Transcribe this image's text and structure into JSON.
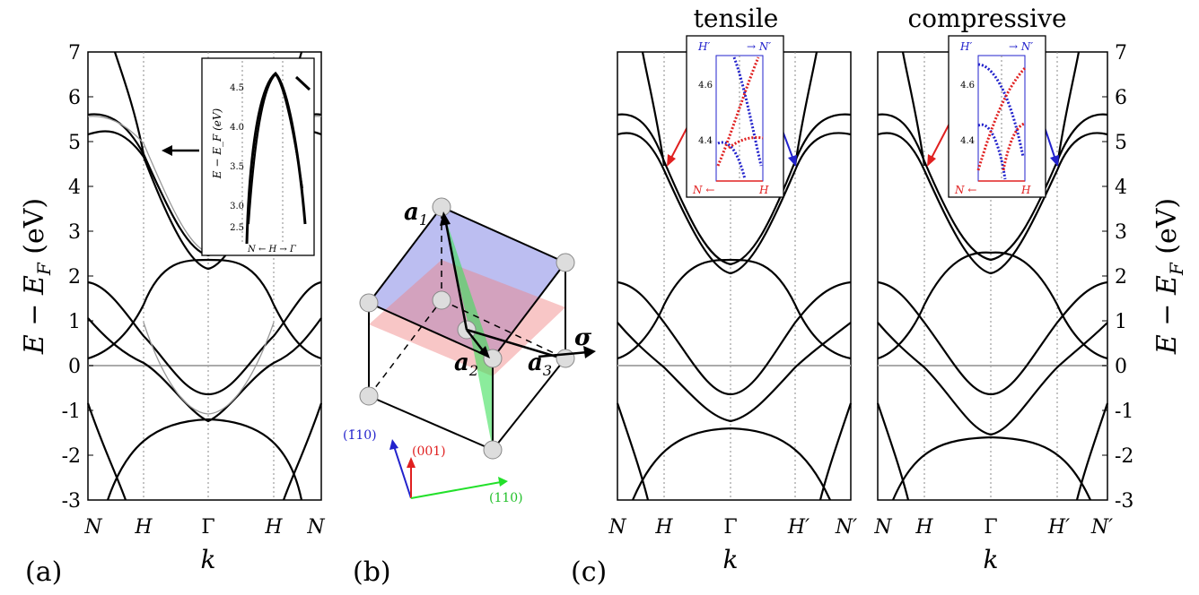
{
  "figure": {
    "panel_labels": [
      "(a)",
      "(b)",
      "(c)"
    ],
    "y_label": "E − E_F (eV)",
    "y_label_main": "E − E",
    "y_label_sub": "F",
    "y_label_unit": " (eV)",
    "x_label": "k",
    "y_ticks": [
      "7",
      "6",
      "5",
      "4",
      "3",
      "2",
      "1",
      "0",
      "-1",
      "-2",
      "-3"
    ]
  },
  "panel_a": {
    "x_ticks": [
      "N",
      "H",
      "Γ",
      "H",
      "N"
    ],
    "inset": {
      "y_label": "E − E_F (eV)",
      "y_ticks": [
        "4.5",
        "4.0",
        "3.5",
        "3.0",
        "2.5"
      ],
      "x_label": "N ← H → Γ"
    }
  },
  "panel_b": {
    "vector_a1": "a",
    "vector_a1_sub": "1",
    "vector_a2": "a",
    "vector_a2_sub": "2",
    "vector_a3": "a",
    "vector_a3_sub": "3",
    "sigma": "σ",
    "axis_blue": "(1̄10)",
    "axis_red": "(001)",
    "axis_green": "(110)",
    "colors": {
      "blue_plane": "#6a6ee0",
      "red_plane": "#f08080",
      "green_plane": "#3ee05a"
    }
  },
  "panel_c_tensile": {
    "title": "tensile",
    "x_ticks": [
      "N",
      "H",
      "Γ",
      "H′",
      "N′"
    ],
    "inset": {
      "top_left": "H′",
      "top_right": "→ N′",
      "bottom_left": "N ←",
      "bottom_right": "H",
      "y_ticks": [
        "4.6",
        "4.4"
      ]
    }
  },
  "panel_c_compressive": {
    "title": "compressive",
    "x_ticks": [
      "N",
      "H",
      "Γ",
      "H′",
      "N′"
    ],
    "inset": {
      "top_left": "H′",
      "top_right": "→ N′",
      "bottom_left": "N ←",
      "bottom_right": "H",
      "y_ticks": [
        "4.6",
        "4.4"
      ]
    }
  }
}
